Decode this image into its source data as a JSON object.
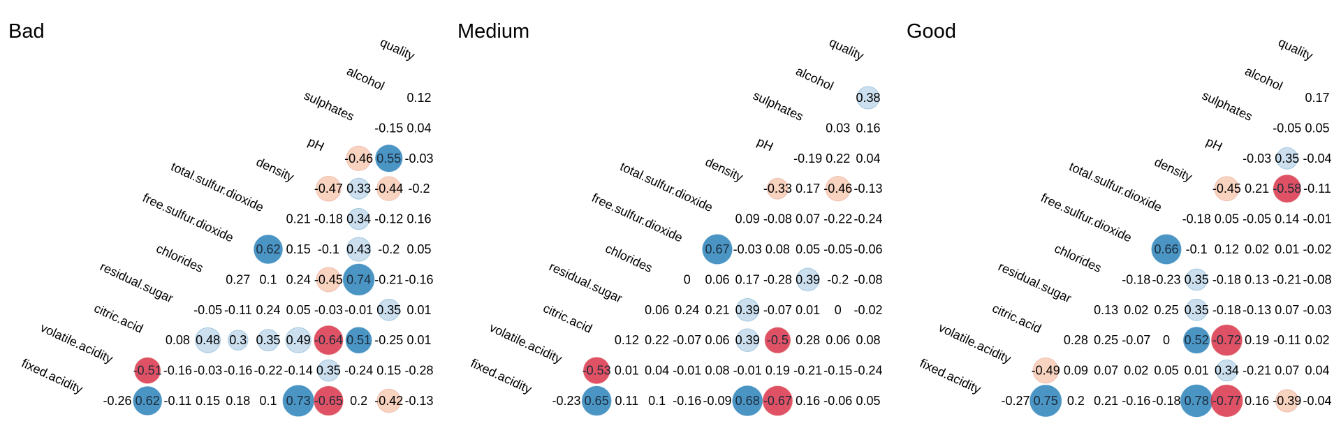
{
  "chart_data": {
    "type": "heatmap",
    "variables": [
      "fixed.acidity",
      "volatile.acidity",
      "citric.acid",
      "residual.sugar",
      "chlorides",
      "free.sulfur.dioxide",
      "total.sulfur.dioxide",
      "density",
      "pH",
      "sulphates",
      "alcohol",
      "quality"
    ],
    "value_range": [
      -1,
      1
    ],
    "colors": {
      "positive": "#2b83ba",
      "negative": "#d7263d",
      "light_positive": "#c6dcec",
      "light_negative": "#f6c8b0"
    },
    "panels": [
      {
        "title": "Bad",
        "rows": [
          [
            -0.26,
            0.62,
            -0.11,
            0.15,
            0.18,
            0.1,
            0.73,
            -0.65,
            0.2,
            -0.42,
            -0.13
          ],
          [
            -0.51,
            -0.16,
            -0.03,
            -0.16,
            -0.22,
            -0.14,
            0.35,
            -0.24,
            0.15,
            -0.28
          ],
          [
            0.08,
            0.48,
            0.3,
            0.35,
            0.49,
            -0.64,
            0.51,
            -0.25,
            0.01
          ],
          [
            -0.05,
            -0.11,
            0.24,
            0.05,
            -0.03,
            -0.01,
            0.35,
            0.01
          ],
          [
            0.27,
            0.1,
            0.24,
            -0.45,
            0.74,
            -0.21,
            -0.16
          ],
          [
            0.62,
            0.15,
            -0.1,
            0.43,
            -0.2,
            0.05
          ],
          [
            0.21,
            -0.18,
            0.34,
            -0.12,
            0.16
          ],
          [
            -0.47,
            0.33,
            -0.44,
            -0.2
          ],
          [
            -0.46,
            0.55,
            -0.03
          ],
          [
            -0.15,
            0.04
          ],
          [
            0.12
          ]
        ]
      },
      {
        "title": "Medium",
        "rows": [
          [
            -0.23,
            0.65,
            0.11,
            0.1,
            -0.16,
            -0.09,
            0.68,
            -0.67,
            0.16,
            -0.06,
            0.05
          ],
          [
            -0.53,
            0.01,
            0.04,
            -0.01,
            0.08,
            -0.01,
            0.19,
            -0.21,
            -0.15,
            -0.24
          ],
          [
            0.12,
            0.22,
            -0.07,
            0.06,
            0.39,
            -0.5,
            0.28,
            0.06,
            0.08
          ],
          [
            0.06,
            0.24,
            0.21,
            0.39,
            -0.07,
            0.01,
            0,
            -0.02
          ],
          [
            0,
            0.06,
            0.17,
            -0.28,
            0.39,
            -0.2,
            -0.08
          ],
          [
            0.67,
            -0.03,
            0.08,
            0.05,
            -0.05,
            -0.06
          ],
          [
            0.09,
            -0.08,
            0.07,
            -0.22,
            -0.24
          ],
          [
            -0.33,
            0.17,
            -0.46,
            -0.13
          ],
          [
            -0.19,
            0.22,
            0.04
          ],
          [
            0.03,
            0.16
          ],
          [
            0.38
          ]
        ]
      },
      {
        "title": "Good",
        "rows": [
          [
            -0.27,
            0.75,
            0.2,
            0.21,
            -0.16,
            -0.18,
            0.78,
            -0.77,
            0.16,
            -0.39,
            -0.04
          ],
          [
            -0.49,
            0.09,
            0.07,
            0.02,
            0.05,
            0.01,
            0.34,
            -0.21,
            0.07,
            0.04
          ],
          [
            0.28,
            0.25,
            -0.07,
            0,
            0.52,
            -0.72,
            0.19,
            -0.11,
            0.02
          ],
          [
            0.13,
            0.02,
            0.25,
            0.35,
            -0.18,
            -0.13,
            0.07,
            -0.03
          ],
          [
            -0.18,
            -0.23,
            0.35,
            -0.18,
            0.13,
            -0.21,
            -0.08
          ],
          [
            0.66,
            -0.1,
            0.12,
            0.02,
            0.01,
            -0.02
          ],
          [
            -0.18,
            0.05,
            -0.05,
            0.14,
            -0.01
          ],
          [
            -0.45,
            0.21,
            -0.58,
            -0.11
          ],
          [
            -0.03,
            0.35,
            -0.04
          ],
          [
            -0.05,
            0.05
          ],
          [
            0.17
          ]
        ]
      }
    ]
  }
}
